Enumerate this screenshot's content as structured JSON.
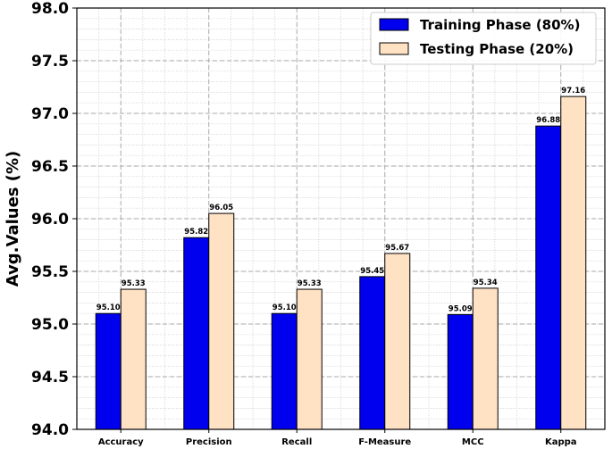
{
  "chart_data": {
    "type": "bar",
    "categories": [
      "Accuracy",
      "Precision",
      "Recall",
      "F-Measure",
      "MCC",
      "Kappa"
    ],
    "series": [
      {
        "name": "Training Phase (80%)",
        "values": [
          95.1,
          95.82,
          95.1,
          95.45,
          95.09,
          96.88
        ],
        "labels": [
          "95.10",
          "95.82",
          "95.10",
          "95.45",
          "95.09",
          "96.88"
        ],
        "color": "#0000ee"
      },
      {
        "name": "Testing Phase (20%)",
        "values": [
          95.33,
          96.05,
          95.33,
          95.67,
          95.34,
          97.16
        ],
        "labels": [
          "95.33",
          "96.05",
          "95.33",
          "95.67",
          "95.34",
          "97.16"
        ],
        "color": "#ffe1c4"
      }
    ],
    "ylabel": "Avg.Values (%)",
    "xlabel": "",
    "ylim": [
      94.0,
      98.0
    ],
    "yticks": [
      "94.0",
      "94.5",
      "95.0",
      "95.5",
      "96.0",
      "96.5",
      "97.0",
      "97.5",
      "98.0"
    ],
    "grid": true,
    "legend_position": "top-right"
  }
}
